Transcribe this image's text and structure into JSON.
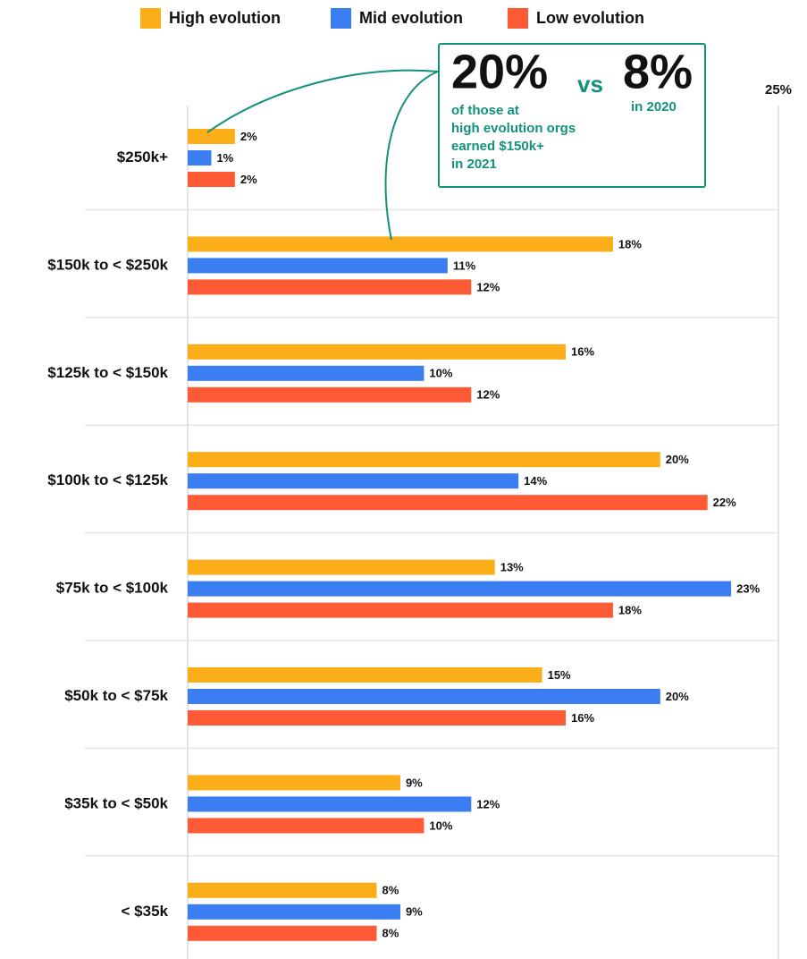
{
  "chart_data": {
    "type": "bar",
    "orientation": "horizontal",
    "categories": [
      "$250k+",
      "$150k to < $250k",
      "$125k to < $150k",
      "$100k to < $125k",
      "$75k to < $100k",
      "$50k to < $75k",
      "$35k to < $50k",
      "< $35k"
    ],
    "series": [
      {
        "name": "High evolution",
        "color": "#fbae17",
        "values": [
          2,
          18,
          16,
          20,
          13,
          15,
          9,
          8
        ],
        "value_labels": [
          "2%",
          "18%",
          "16%",
          "20%",
          "13%",
          "15%",
          "9%",
          "8%"
        ]
      },
      {
        "name": "Mid evolution",
        "color": "#3a7ef2",
        "values": [
          1,
          11,
          10,
          14,
          23,
          20,
          12,
          9
        ],
        "value_labels": [
          "1%",
          "11%",
          "10%",
          "14%",
          "23%",
          "20%",
          "12%",
          "9%"
        ]
      },
      {
        "name": "Low evolution",
        "color": "#ff5a36",
        "values": [
          2,
          12,
          12,
          22,
          18,
          16,
          10,
          8
        ],
        "value_labels": [
          "2%",
          "12%",
          "12%",
          "22%",
          "18%",
          "16%",
          "10%",
          "8%"
        ]
      }
    ],
    "xlim": [
      0,
      25
    ],
    "xticks": [
      {
        "value": 25,
        "label": "25%"
      }
    ],
    "legend": "top",
    "annotation": {
      "big": "20%",
      "vs": "vs",
      "compare": "8%",
      "compare_note": "in 2020",
      "lines": [
        "of those at",
        "high evolution orgs",
        "earned $150k+",
        "in 2021"
      ]
    }
  }
}
